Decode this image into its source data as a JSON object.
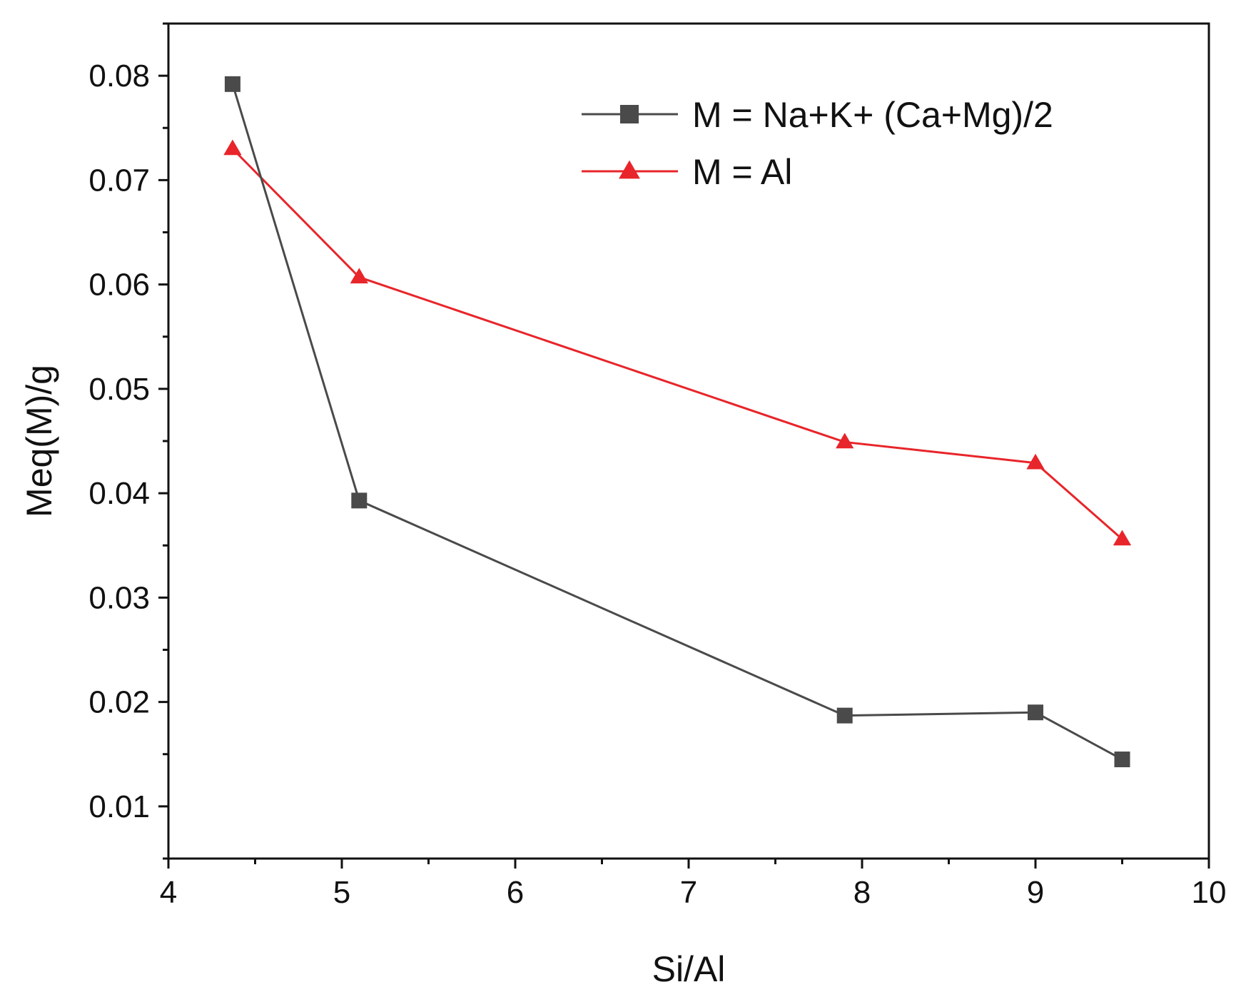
{
  "chart_data": {
    "type": "line",
    "title": "",
    "xlabel": "Si/Al",
    "ylabel": "Meq(M)/g",
    "xlim": [
      4,
      10
    ],
    "ylim": [
      0.005,
      0.085
    ],
    "xticks": [
      4,
      5,
      6,
      7,
      8,
      9,
      10
    ],
    "xtick_labels": [
      "4",
      "5",
      "6",
      "7",
      "8",
      "9",
      "10"
    ],
    "yticks": [
      0.01,
      0.02,
      0.03,
      0.04,
      0.05,
      0.06,
      0.07,
      0.08
    ],
    "ytick_labels": [
      "0.01",
      "0.02",
      "0.03",
      "0.04",
      "0.05",
      "0.06",
      "0.07",
      "0.08"
    ],
    "grid": false,
    "legend_position": "top-right",
    "series": [
      {
        "name": "M = Na+K+ (Ca+Mg)/2",
        "color": "#4a4a4a",
        "marker": "square",
        "x": [
          4.37,
          5.1,
          7.9,
          9.0,
          9.5
        ],
        "y": [
          0.0792,
          0.0393,
          0.0187,
          0.019,
          0.0145
        ]
      },
      {
        "name": "M = Al",
        "color": "#e8252a",
        "marker": "triangle",
        "x": [
          4.37,
          5.1,
          7.9,
          9.0,
          9.5
        ],
        "y": [
          0.073,
          0.0607,
          0.0449,
          0.0429,
          0.0356
        ]
      }
    ]
  }
}
